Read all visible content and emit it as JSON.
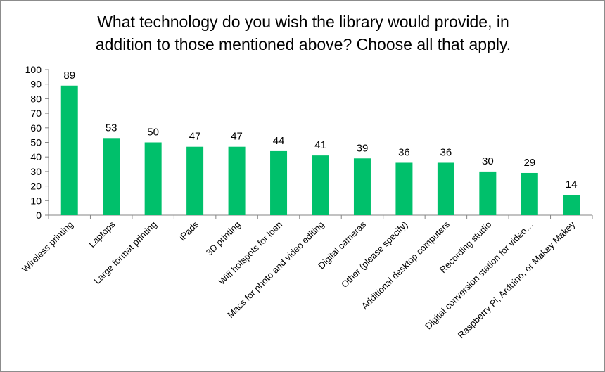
{
  "chart_data": {
    "type": "bar",
    "title_lines": [
      "What technology do you wish the library would provide, in",
      "addition to those mentioned above? Choose all that apply."
    ],
    "categories": [
      "Wireless printing",
      "Laptops",
      "Large format printing",
      "iPads",
      "3D printing",
      "Wifi hotspots for loan",
      "Macs for photo and video editing",
      "Digital cameras",
      "Other (please specify)",
      "Additional desktop computers",
      "Recording studio",
      "Digital conversion station for video…",
      "Raspberry Pi, Arduino, or Makey Makey"
    ],
    "values": [
      89,
      53,
      50,
      47,
      47,
      44,
      41,
      39,
      36,
      36,
      30,
      29,
      14
    ],
    "ylim": [
      0,
      100
    ],
    "yticks": [
      0,
      10,
      20,
      30,
      40,
      50,
      60,
      70,
      80,
      90,
      100
    ],
    "data_labels": true,
    "grid": false,
    "bar_color": "#00c06b"
  }
}
